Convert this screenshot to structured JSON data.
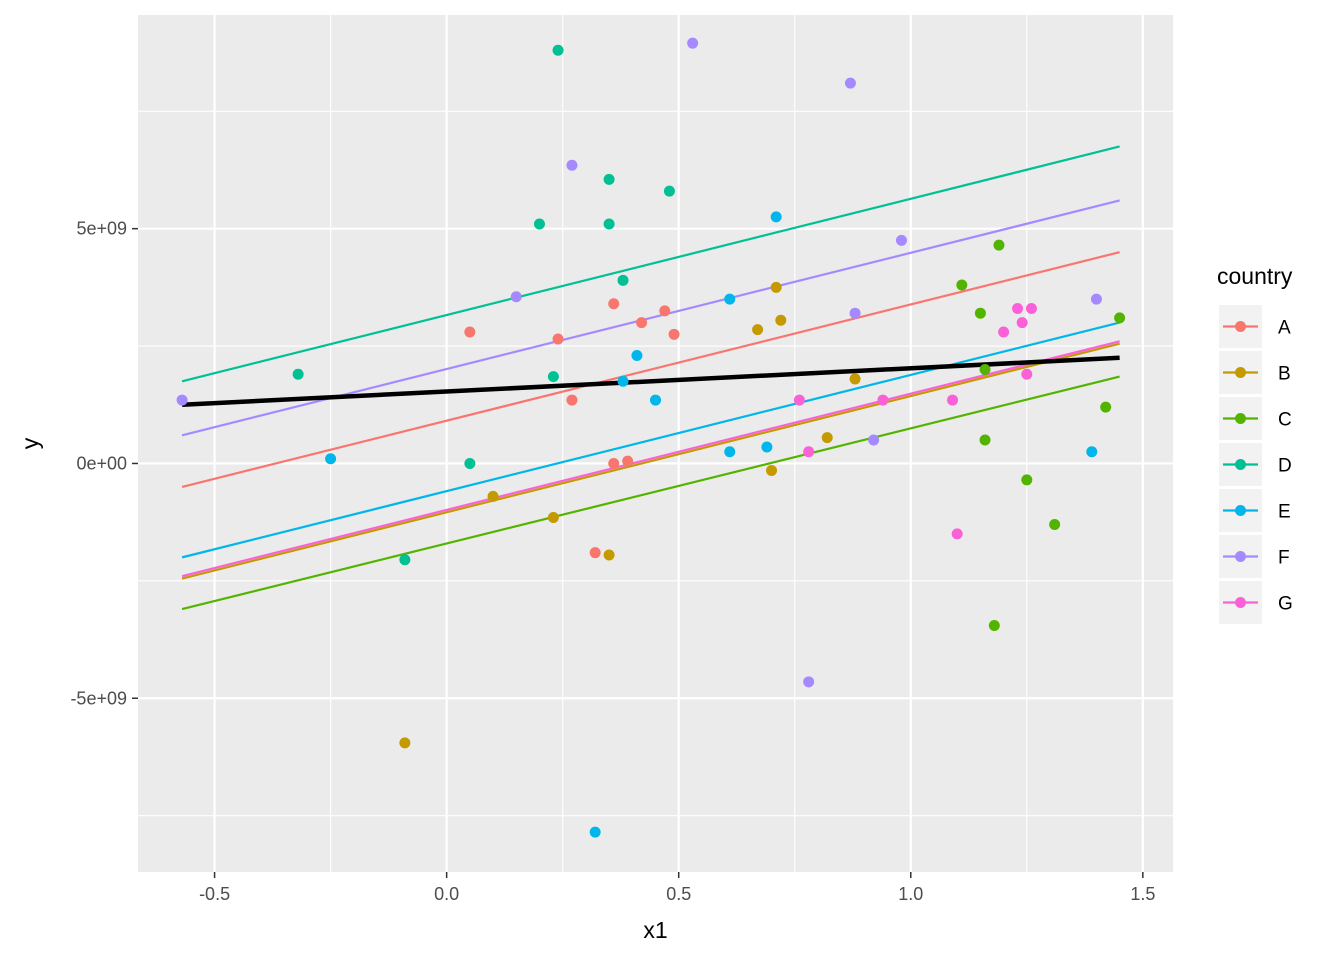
{
  "chart_data": {
    "type": "scatter",
    "title": "",
    "xlabel": "x1",
    "ylabel": "y",
    "xlim": [
      -0.665,
      1.565
    ],
    "ylim": [
      -8700000000.0,
      9550000000.0
    ],
    "x_ticks": [
      {
        "value": -0.5,
        "label": "-0.5"
      },
      {
        "value": 0.0,
        "label": "0.0"
      },
      {
        "value": 0.5,
        "label": "0.5"
      },
      {
        "value": 1.0,
        "label": "1.0"
      },
      {
        "value": 1.5,
        "label": "1.5"
      }
    ],
    "x_minor": [
      -0.25,
      0.25,
      0.75,
      1.25
    ],
    "y_ticks": [
      {
        "value": -5000000000.0,
        "label": "-5e+09"
      },
      {
        "value": 0,
        "label": "0e+00"
      },
      {
        "value": 5000000000.0,
        "label": "5e+09"
      }
    ],
    "y_minor": [
      -7500000000.0,
      -2500000000.0,
      2500000000.0,
      7500000000.0
    ],
    "grid": true,
    "legend": {
      "title": "country",
      "position": "right"
    },
    "overall_fit": {
      "color": "#000000",
      "x": [
        -0.57,
        1.45
      ],
      "y": [
        1250000000.0,
        2250000000.0
      ]
    },
    "series": [
      {
        "name": "A",
        "color": "#F8766D",
        "fit": {
          "x": [
            -0.57,
            1.45
          ],
          "y": [
            -500000000.0,
            4500000000.0
          ]
        },
        "points": [
          [
            0.05,
            2800000000.0
          ],
          [
            0.24,
            2650000000.0
          ],
          [
            0.27,
            1350000000.0
          ],
          [
            0.32,
            -1900000000.0
          ],
          [
            0.36,
            3400000000.0
          ],
          [
            0.36,
            0.0
          ],
          [
            0.39,
            50000000.0
          ],
          [
            0.42,
            3000000000.0
          ],
          [
            0.47,
            3250000000.0
          ],
          [
            0.49,
            2750000000.0
          ]
        ]
      },
      {
        "name": "B",
        "color": "#C49A00",
        "fit": {
          "x": [
            -0.57,
            1.45
          ],
          "y": [
            -2450000000.0,
            2550000000.0
          ]
        },
        "points": [
          [
            -0.09,
            -5950000000.0
          ],
          [
            0.1,
            -700000000.0
          ],
          [
            0.23,
            -1150000000.0
          ],
          [
            0.35,
            -1950000000.0
          ],
          [
            0.67,
            2850000000.0
          ],
          [
            0.7,
            -150000000.0
          ],
          [
            0.71,
            3750000000.0
          ],
          [
            0.72,
            3050000000.0
          ],
          [
            0.82,
            550000000.0
          ],
          [
            0.88,
            1800000000.0
          ]
        ]
      },
      {
        "name": "C",
        "color": "#53B400",
        "fit": {
          "x": [
            -0.57,
            1.45
          ],
          "y": [
            -3100000000.0,
            1850000000.0
          ]
        },
        "points": [
          [
            1.11,
            3800000000.0
          ],
          [
            1.15,
            3200000000.0
          ],
          [
            1.16,
            2000000000.0
          ],
          [
            1.16,
            500000000.0
          ],
          [
            1.18,
            -3450000000.0
          ],
          [
            1.19,
            4650000000.0
          ],
          [
            1.25,
            -350000000.0
          ],
          [
            1.31,
            -1300000000.0
          ],
          [
            1.42,
            1200000000.0
          ],
          [
            1.45,
            3100000000.0
          ]
        ]
      },
      {
        "name": "D",
        "color": "#00C094",
        "fit": {
          "x": [
            -0.57,
            1.45
          ],
          "y": [
            1750000000.0,
            6750000000.0
          ]
        },
        "points": [
          [
            -0.32,
            1900000000.0
          ],
          [
            -0.09,
            -2050000000.0
          ],
          [
            0.05,
            0.0
          ],
          [
            0.2,
            5100000000.0
          ],
          [
            0.23,
            1850000000.0
          ],
          [
            0.24,
            8800000000.0
          ],
          [
            0.35,
            6050000000.0
          ],
          [
            0.35,
            5100000000.0
          ],
          [
            0.38,
            3900000000.0
          ],
          [
            0.48,
            5800000000.0
          ]
        ]
      },
      {
        "name": "E",
        "color": "#00B6EB",
        "fit": {
          "x": [
            -0.57,
            1.45
          ],
          "y": [
            -2000000000.0,
            3000000000.0
          ]
        },
        "points": [
          [
            -0.25,
            100000000.0
          ],
          [
            0.32,
            -7850000000.0
          ],
          [
            0.38,
            1750000000.0
          ],
          [
            0.41,
            2300000000.0
          ],
          [
            0.45,
            1350000000.0
          ],
          [
            0.61,
            250000000.0
          ],
          [
            0.61,
            3500000000.0
          ],
          [
            0.69,
            350000000.0
          ],
          [
            0.71,
            5250000000.0
          ],
          [
            1.39,
            250000000.0
          ]
        ]
      },
      {
        "name": "F",
        "color": "#A58AFF",
        "fit": {
          "x": [
            -0.57,
            1.45
          ],
          "y": [
            600000000.0,
            5600000000.0
          ]
        },
        "points": [
          [
            -0.57,
            1350000000.0
          ],
          [
            0.15,
            3550000000.0
          ],
          [
            0.27,
            6350000000.0
          ],
          [
            0.53,
            8950000000.0
          ],
          [
            0.78,
            -4650000000.0
          ],
          [
            0.87,
            8100000000.0
          ],
          [
            0.88,
            3200000000.0
          ],
          [
            0.92,
            500000000.0
          ],
          [
            0.98,
            4750000000.0
          ],
          [
            1.4,
            3500000000.0
          ]
        ]
      },
      {
        "name": "G",
        "color": "#FB61D7",
        "fit": {
          "x": [
            -0.57,
            1.45
          ],
          "y": [
            -2400000000.0,
            2600000000.0
          ]
        },
        "points": [
          [
            0.76,
            1350000000.0
          ],
          [
            0.78,
            250000000.0
          ],
          [
            0.94,
            1350000000.0
          ],
          [
            1.09,
            1350000000.0
          ],
          [
            1.1,
            -1500000000.0
          ],
          [
            1.2,
            2800000000.0
          ],
          [
            1.23,
            3300000000.0
          ],
          [
            1.24,
            3000000000.0
          ],
          [
            1.25,
            1900000000.0
          ],
          [
            1.26,
            3300000000.0
          ]
        ]
      }
    ]
  }
}
